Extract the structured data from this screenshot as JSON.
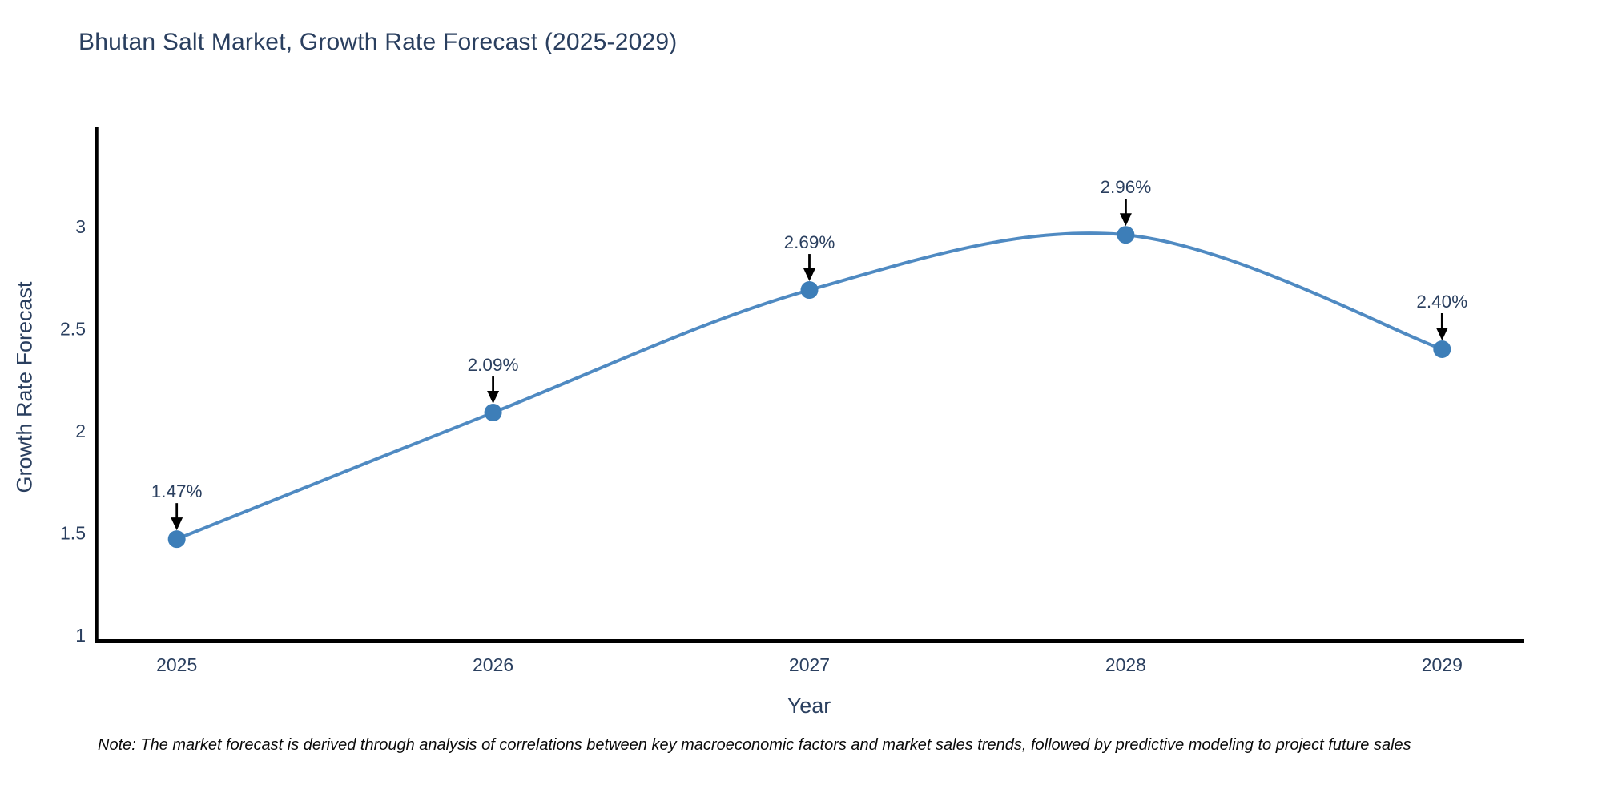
{
  "chart_data": {
    "type": "line",
    "title": "Bhutan Salt Market, Growth Rate Forecast (2025-2029)",
    "xlabel": "Year",
    "ylabel": "Growth Rate Forecast",
    "categories": [
      2025,
      2026,
      2027,
      2028,
      2029
    ],
    "series": [
      {
        "name": "Growth Rate Forecast",
        "values": [
          1.47,
          2.09,
          2.69,
          2.96,
          2.4
        ],
        "point_labels": [
          "1.47%",
          "2.09%",
          "2.69%",
          "2.96%",
          "2.40%"
        ]
      }
    ],
    "yticks": [
      1,
      1.5,
      2,
      2.5,
      3
    ],
    "ylim": [
      0.96,
      3.52
    ],
    "xlim": [
      2024.74,
      2029.26
    ],
    "grid": false,
    "legend_position": "none",
    "line_shape": "spline",
    "colors": {
      "line": "#4f8ac2",
      "marker": "#3d7eb8",
      "axis": "#000000",
      "tick_text": "#2a3f5f",
      "annotation_text": "#2a3f5f",
      "annotation_arrow": "#000000"
    }
  },
  "note": {
    "text": "Note: The market forecast is derived through analysis of correlations between key macroeconomic factors and market sales trends, followed by predictive modeling to project future sales"
  }
}
